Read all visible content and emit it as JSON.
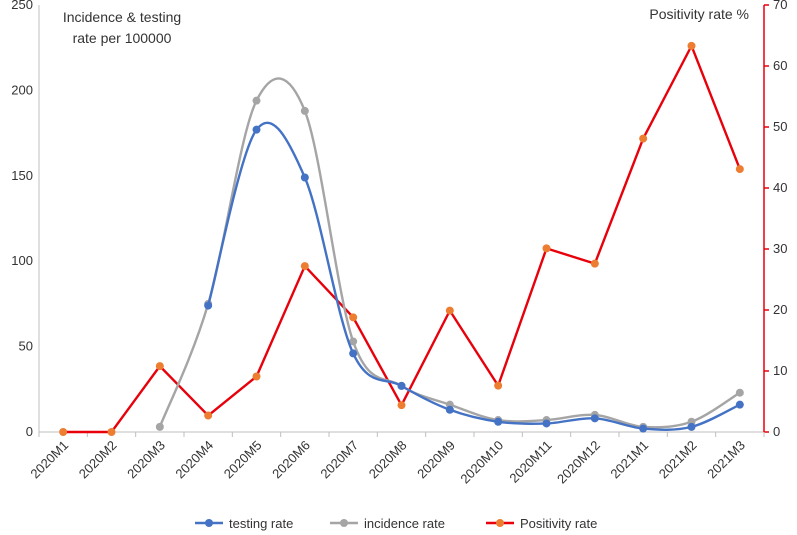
{
  "chart_data": {
    "type": "line",
    "title": "",
    "left_axis_title": [
      "Incidence & testing",
      "rate per 100000"
    ],
    "right_axis_title": "Positivity rate %",
    "categories": [
      "2020M1",
      "2020M2",
      "2020M3",
      "2020M4",
      "2020M5",
      "2020M6",
      "2020M7",
      "2020M8",
      "2020M9",
      "2020M10",
      "2020M11",
      "2020M12",
      "2021M1",
      "2021M2",
      "2021M3"
    ],
    "y_left": {
      "min": 0,
      "max": 250,
      "ticks": [
        0,
        50,
        100,
        150,
        200,
        250
      ]
    },
    "y_right": {
      "min": 0,
      "max": 70,
      "ticks": [
        0,
        10,
        20,
        30,
        40,
        50,
        60,
        70
      ],
      "color": "#e8000b"
    },
    "grid": false,
    "legend_position": "bottom",
    "series": [
      {
        "name": "testing rate",
        "axis": "left",
        "smooth": true,
        "line_color": "#4472c4",
        "marker_color": "#4472c4",
        "values": [
          null,
          null,
          null,
          74,
          177,
          149,
          46,
          27,
          13,
          6,
          5,
          8,
          2,
          3,
          16
        ]
      },
      {
        "name": "incidence rate",
        "axis": "left",
        "smooth": true,
        "line_color": "#a5a5a5",
        "marker_color": "#a5a5a5",
        "values": [
          null,
          null,
          3,
          75,
          194,
          188,
          53,
          27,
          16,
          7,
          7,
          10,
          3,
          6,
          23
        ]
      },
      {
        "name": "Positivity rate",
        "axis": "right",
        "smooth": false,
        "line_color": "#e8000b",
        "marker_color": "#ed7d31",
        "values": [
          0,
          0,
          10.8,
          2.7,
          9.1,
          27.2,
          18.8,
          4.4,
          19.9,
          7.6,
          30.1,
          27.6,
          48.1,
          63.3,
          43.1
        ]
      }
    ]
  }
}
